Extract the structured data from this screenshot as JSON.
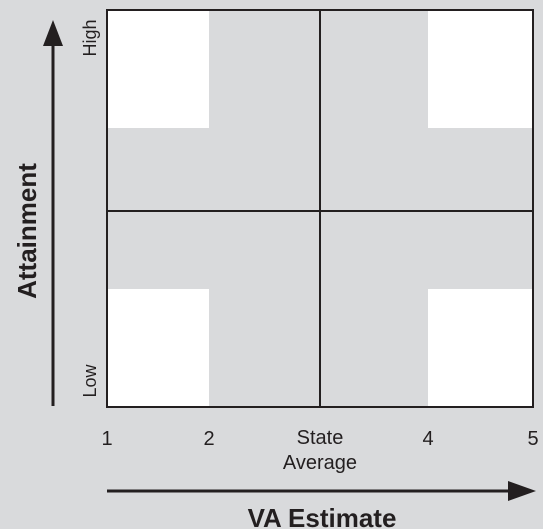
{
  "diagram": {
    "y_axis_title": "Attainment",
    "x_axis_title": "VA Estimate",
    "y_high_label": "High",
    "y_low_label": "Low",
    "x_ticks": [
      {
        "value": 1,
        "label": "1"
      },
      {
        "value": 2,
        "label": "2"
      },
      {
        "value": 3,
        "label": "State",
        "sublabel": "Average"
      },
      {
        "value": 4,
        "label": "4"
      },
      {
        "value": 5,
        "label": "5"
      }
    ],
    "colors": {
      "background": "#d9dadc",
      "corner_fill": "#ffffff",
      "lines": "#231f20"
    }
  }
}
